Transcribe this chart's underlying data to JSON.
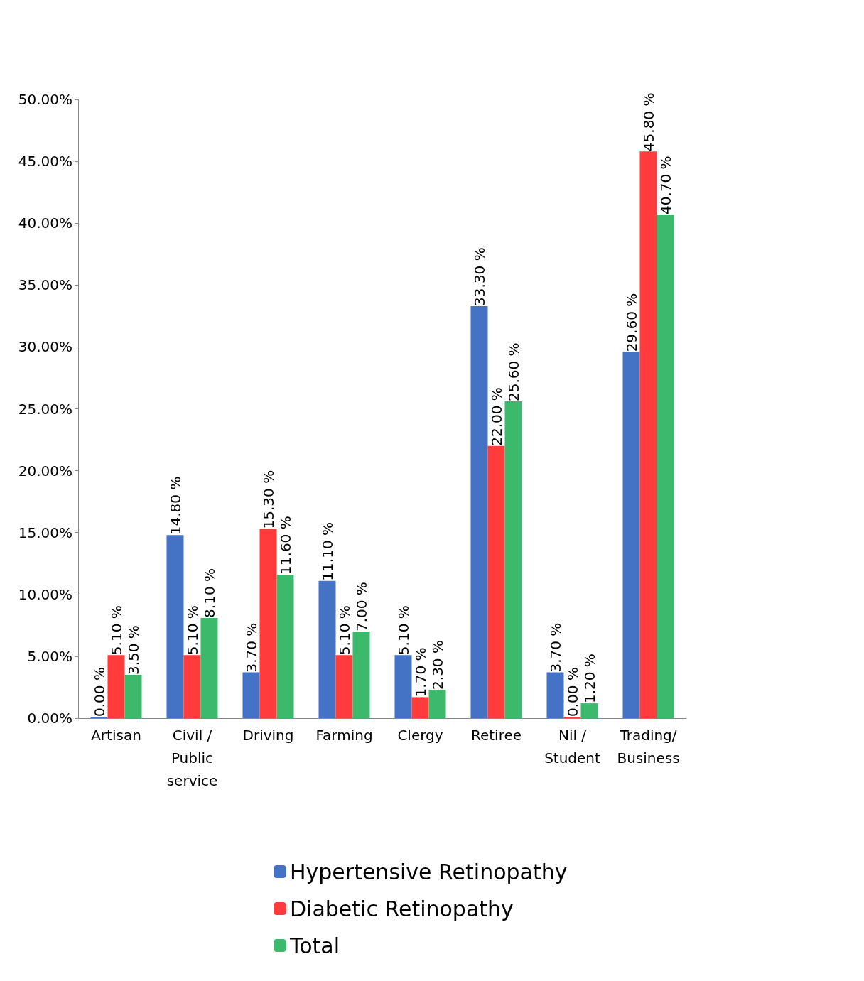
{
  "chart_data": {
    "type": "bar",
    "categories": [
      "Artisan",
      "Civil /\nPublic\nservice",
      "Driving",
      "Farming",
      "Clergy",
      "Retiree",
      "Nil /\nStudent",
      "Trading/\nBusiness"
    ],
    "series": [
      {
        "name": "Hypertensive Retinopathy",
        "color": "#4472c4",
        "values": [
          0.0,
          14.8,
          3.7,
          11.1,
          5.1,
          33.3,
          3.7,
          29.6
        ],
        "value_labels": [
          "0.00 %",
          "14.80 %",
          "3.70 %",
          "11.10 %",
          "5.10 %",
          "33.30 %",
          "3.70 %",
          "29.60 %"
        ]
      },
      {
        "name": "Diabetic Retinopathy",
        "color": "#ff3b3b",
        "values": [
          5.1,
          5.1,
          15.3,
          5.1,
          1.7,
          22.0,
          0.0,
          45.8
        ],
        "value_labels": [
          "5.10 %",
          "5.10 %",
          "15.30 %",
          "5.10 %",
          "1.70 %",
          "22.00 %",
          "0.00 %",
          "45.80 %"
        ]
      },
      {
        "name": "Total",
        "color": "#3cb96a",
        "values": [
          3.5,
          8.1,
          11.6,
          7.0,
          2.3,
          25.6,
          1.2,
          40.7
        ],
        "value_labels": [
          "3.50 %",
          "8.10 %",
          "11.60 %",
          "7.00 %",
          "2.30 %",
          "25.60 %",
          "1.20 %",
          "40.70 %"
        ]
      }
    ],
    "ylim": [
      0,
      50
    ],
    "yticks": [
      {
        "value": 0,
        "label": "0.00%"
      },
      {
        "value": 5,
        "label": "5.00%"
      },
      {
        "value": 10,
        "label": "10.00%"
      },
      {
        "value": 15,
        "label": "15.00%"
      },
      {
        "value": 20,
        "label": "20.00%"
      },
      {
        "value": 25,
        "label": "25.00%"
      },
      {
        "value": 30,
        "label": "30.00%"
      },
      {
        "value": 35,
        "label": "35.00%"
      },
      {
        "value": 40,
        "label": "40.00%"
      },
      {
        "value": 45,
        "label": "45.00%"
      },
      {
        "value": 50,
        "label": "50.00%"
      }
    ],
    "grid": false,
    "legend": "bottom"
  }
}
